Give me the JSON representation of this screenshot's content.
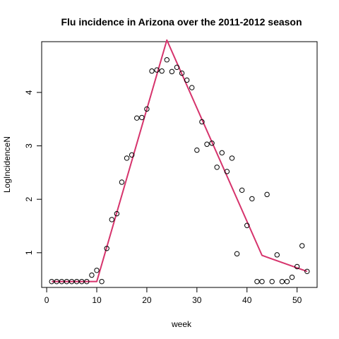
{
  "chart_data": {
    "type": "scatter",
    "title": "Flu incidence in Arizona over the 2011-2012 season",
    "xlabel": "week",
    "ylabel": "LogIncidenceN",
    "xlim": [
      -1,
      54
    ],
    "ylim": [
      0.35,
      4.95
    ],
    "xticks": [
      0,
      10,
      20,
      30,
      40,
      50
    ],
    "yticks": [
      1,
      2,
      3,
      4
    ],
    "grid": false,
    "colors": {
      "points": "#000000",
      "fit_line": "#d6336c"
    },
    "series": [
      {
        "type": "scatter",
        "x": [
          1,
          2,
          3,
          4,
          5,
          6,
          7,
          8,
          9,
          10,
          11,
          12,
          13,
          14,
          15,
          16,
          17,
          18,
          19,
          20,
          21,
          22,
          23,
          24,
          25,
          26,
          27,
          28,
          29,
          30,
          31,
          32,
          33,
          34,
          35,
          36,
          37,
          38,
          39,
          40,
          41,
          42,
          43,
          44,
          45,
          46,
          47,
          48,
          49,
          50,
          51,
          52
        ],
        "y": [
          0.46,
          0.46,
          0.46,
          0.46,
          0.46,
          0.46,
          0.46,
          0.46,
          0.58,
          0.67,
          0.46,
          1.08,
          1.62,
          1.73,
          2.32,
          2.77,
          2.83,
          3.52,
          3.53,
          3.69,
          4.4,
          4.42,
          4.4,
          4.61,
          4.39,
          4.47,
          4.36,
          4.23,
          4.09,
          2.92,
          3.45,
          3.03,
          3.05,
          2.6,
          2.87,
          2.52,
          2.77,
          0.98,
          2.17,
          1.51,
          2.01,
          0.46,
          0.46,
          2.09,
          0.46,
          0.96,
          0.46,
          0.46,
          0.54,
          0.74,
          1.13,
          0.65
        ]
      },
      {
        "type": "line",
        "x": [
          1,
          10,
          24,
          43,
          52
        ],
        "y": [
          0.46,
          0.46,
          4.98,
          0.95,
          0.65
        ]
      }
    ]
  }
}
